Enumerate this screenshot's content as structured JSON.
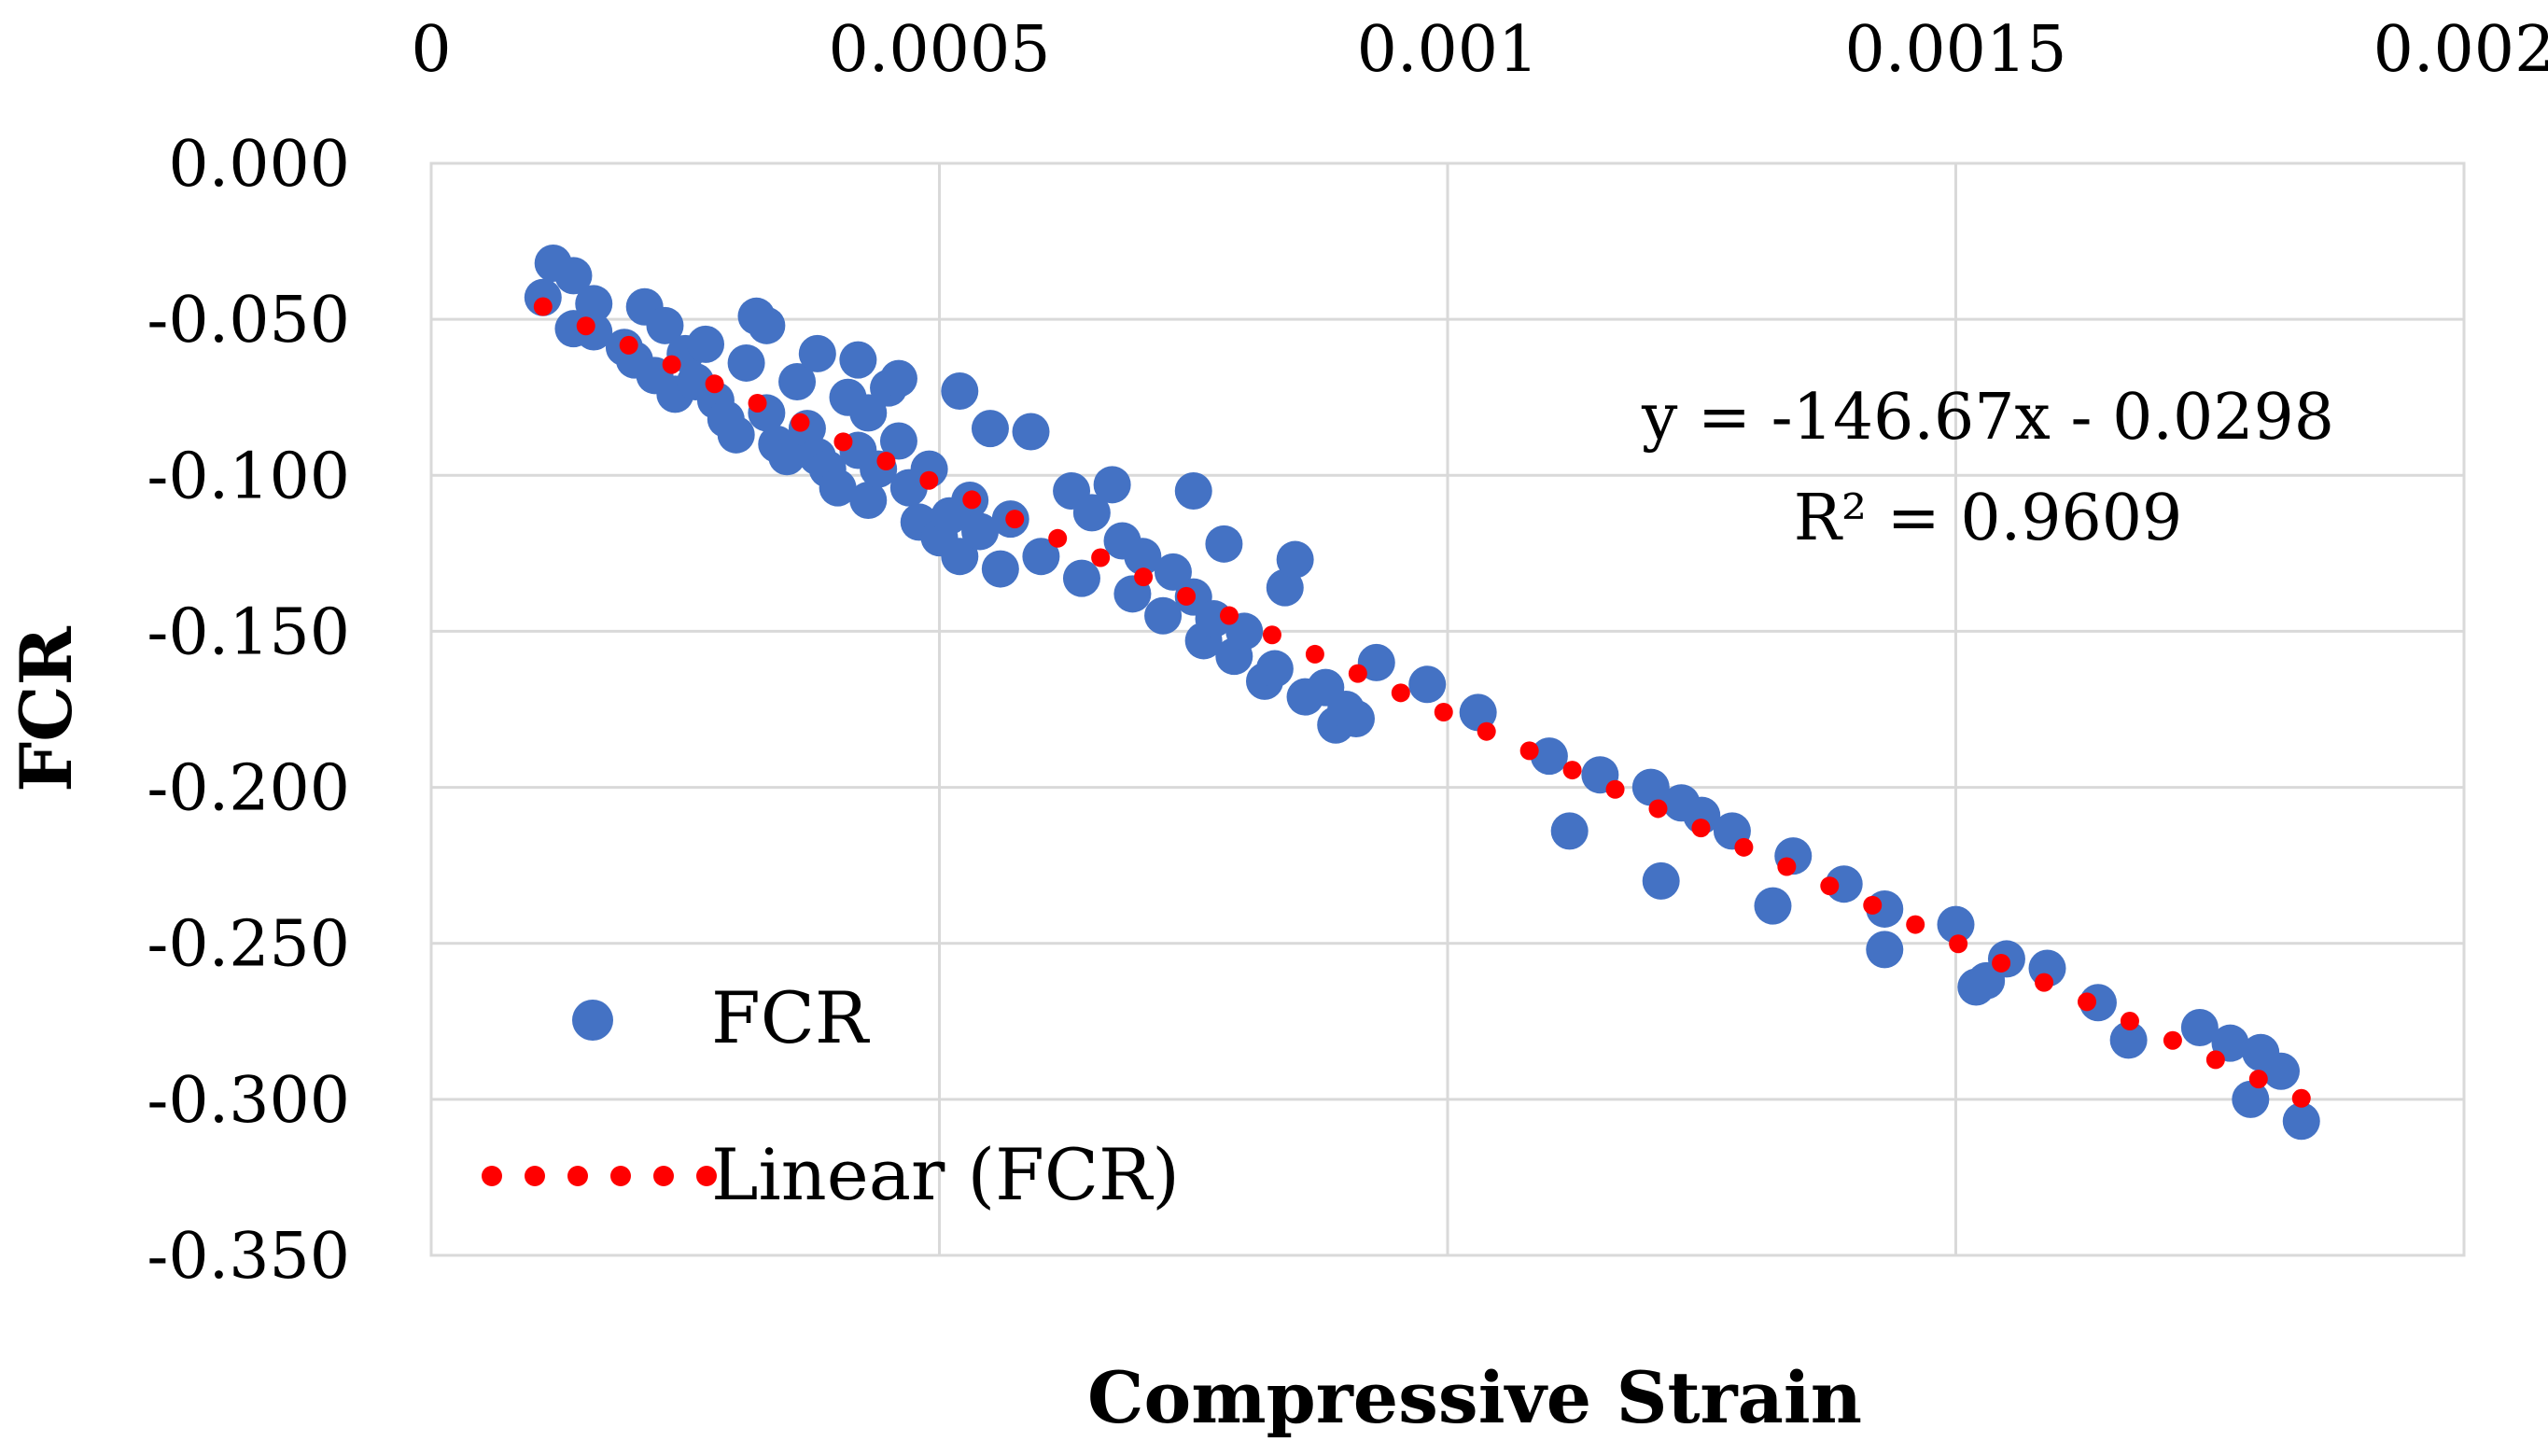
{
  "chart_data": {
    "type": "scatter",
    "title": "",
    "xlabel": "Compressive Strain",
    "ylabel": "FCR",
    "xlim": [
      0,
      0.002
    ],
    "ylim": [
      -0.35,
      0
    ],
    "x_axis_position": "top",
    "grid": true,
    "x_ticks": [
      0,
      0.0005,
      0.001,
      0.0015,
      0.002
    ],
    "x_tick_labels": [
      "0",
      "0.0005",
      "0.001",
      "0.0015",
      "0.002"
    ],
    "y_ticks": [
      0,
      -0.05,
      -0.1,
      -0.15,
      -0.2,
      -0.25,
      -0.3,
      -0.35
    ],
    "y_tick_labels": [
      "0.000",
      "-0.050",
      "-0.100",
      "-0.150",
      "-0.200",
      "-0.250",
      "-0.300",
      "-0.350"
    ],
    "colors": {
      "marker": "#4472c4",
      "trendline": "#ff0000",
      "gridline": "#d9d9d9"
    },
    "series": [
      {
        "name": "FCR",
        "marker": "circle",
        "points": [
          [
            0.00011,
            -0.043
          ],
          [
            0.00012,
            -0.032
          ],
          [
            0.00014,
            -0.036
          ],
          [
            0.00016,
            -0.045
          ],
          [
            0.00014,
            -0.053
          ],
          [
            0.00016,
            -0.054
          ],
          [
            0.00019,
            -0.059
          ],
          [
            0.00021,
            -0.046
          ],
          [
            0.0002,
            -0.063
          ],
          [
            0.00022,
            -0.068
          ],
          [
            0.00023,
            -0.052
          ],
          [
            0.00025,
            -0.061
          ],
          [
            0.00024,
            -0.074
          ],
          [
            0.00026,
            -0.07
          ],
          [
            0.00027,
            -0.058
          ],
          [
            0.00028,
            -0.076
          ],
          [
            0.00029,
            -0.082
          ],
          [
            0.0003,
            -0.087
          ],
          [
            0.00031,
            -0.064
          ],
          [
            0.00032,
            -0.049
          ],
          [
            0.00033,
            -0.052
          ],
          [
            0.00033,
            -0.08
          ],
          [
            0.00034,
            -0.09
          ],
          [
            0.00035,
            -0.094
          ],
          [
            0.00036,
            -0.07
          ],
          [
            0.00037,
            -0.085
          ],
          [
            0.00038,
            -0.094
          ],
          [
            0.00038,
            -0.061
          ],
          [
            0.00039,
            -0.098
          ],
          [
            0.0004,
            -0.104
          ],
          [
            0.00041,
            -0.075
          ],
          [
            0.00042,
            -0.063
          ],
          [
            0.00042,
            -0.092
          ],
          [
            0.00043,
            -0.108
          ],
          [
            0.00043,
            -0.08
          ],
          [
            0.00044,
            -0.098
          ],
          [
            0.00045,
            -0.072
          ],
          [
            0.00046,
            -0.089
          ],
          [
            0.00046,
            -0.069
          ],
          [
            0.00047,
            -0.104
          ],
          [
            0.00048,
            -0.115
          ],
          [
            0.00049,
            -0.098
          ],
          [
            0.0005,
            -0.12
          ],
          [
            0.00051,
            -0.113
          ],
          [
            0.00052,
            -0.073
          ],
          [
            0.00052,
            -0.126
          ],
          [
            0.00053,
            -0.108
          ],
          [
            0.00054,
            -0.118
          ],
          [
            0.00055,
            -0.085
          ],
          [
            0.00056,
            -0.13
          ],
          [
            0.00057,
            -0.114
          ],
          [
            0.00059,
            -0.086
          ],
          [
            0.0006,
            -0.126
          ],
          [
            0.00063,
            -0.105
          ],
          [
            0.00064,
            -0.133
          ],
          [
            0.00065,
            -0.112
          ],
          [
            0.00067,
            -0.103
          ],
          [
            0.00068,
            -0.121
          ],
          [
            0.00069,
            -0.138
          ],
          [
            0.0007,
            -0.126
          ],
          [
            0.00072,
            -0.145
          ],
          [
            0.00073,
            -0.131
          ],
          [
            0.00075,
            -0.105
          ],
          [
            0.00075,
            -0.139
          ],
          [
            0.00076,
            -0.153
          ],
          [
            0.00077,
            -0.146
          ],
          [
            0.00078,
            -0.122
          ],
          [
            0.00079,
            -0.158
          ],
          [
            0.0008,
            -0.15
          ],
          [
            0.00082,
            -0.166
          ],
          [
            0.00083,
            -0.162
          ],
          [
            0.00084,
            -0.136
          ],
          [
            0.00085,
            -0.127
          ],
          [
            0.00086,
            -0.171
          ],
          [
            0.00088,
            -0.168
          ],
          [
            0.00089,
            -0.18
          ],
          [
            0.0009,
            -0.175
          ],
          [
            0.00091,
            -0.178
          ],
          [
            0.00093,
            -0.16
          ],
          [
            0.00098,
            -0.167
          ],
          [
            0.00103,
            -0.176
          ],
          [
            0.0011,
            -0.19
          ],
          [
            0.00112,
            -0.214
          ],
          [
            0.00115,
            -0.196
          ],
          [
            0.0012,
            -0.2
          ],
          [
            0.00121,
            -0.23
          ],
          [
            0.00123,
            -0.205
          ],
          [
            0.00125,
            -0.209
          ],
          [
            0.00128,
            -0.214
          ],
          [
            0.00132,
            -0.238
          ],
          [
            0.00134,
            -0.222
          ],
          [
            0.00139,
            -0.231
          ],
          [
            0.00143,
            -0.239
          ],
          [
            0.00143,
            -0.252
          ],
          [
            0.0015,
            -0.244
          ],
          [
            0.00152,
            -0.264
          ],
          [
            0.00153,
            -0.262
          ],
          [
            0.00155,
            -0.255
          ],
          [
            0.00159,
            -0.258
          ],
          [
            0.00164,
            -0.269
          ],
          [
            0.00167,
            -0.281
          ],
          [
            0.00174,
            -0.277
          ],
          [
            0.00177,
            -0.282
          ],
          [
            0.0018,
            -0.285
          ],
          [
            0.00182,
            -0.291
          ],
          [
            0.00179,
            -0.3
          ],
          [
            0.00184,
            -0.307
          ]
        ]
      }
    ],
    "trendline": {
      "name": "Linear (FCR)",
      "type": "linear",
      "style": "dotted",
      "slope": -146.67,
      "intercept": -0.0298,
      "x_range": [
        0.00011,
        0.00184
      ],
      "dot_count": 42,
      "equation_label": "y = -146.67x - 0.0298",
      "r2_label": "R² = 0.9609"
    },
    "legend": {
      "position": "bottom-left",
      "entries": [
        {
          "label": "FCR",
          "symbol": "marker"
        },
        {
          "label": "Linear (FCR)",
          "symbol": "dotted-line"
        }
      ]
    }
  }
}
